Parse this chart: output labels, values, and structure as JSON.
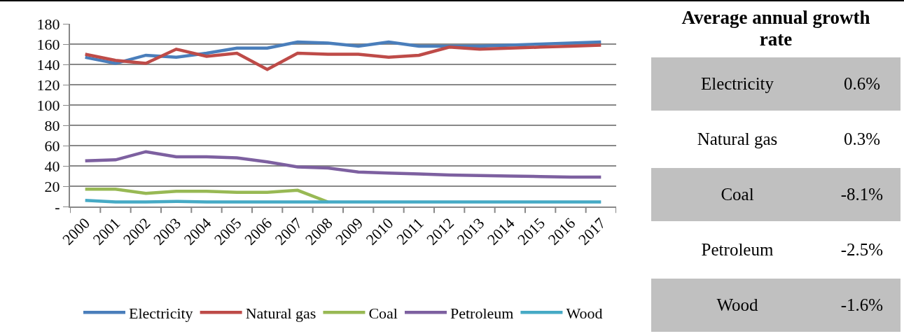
{
  "chart_data": [
    {
      "type": "line",
      "categories": [
        "2000",
        "2001",
        "2002",
        "2003",
        "2004",
        "2005",
        "2006",
        "2007",
        "2008",
        "2009",
        "2010",
        "2011",
        "2012",
        "2013",
        "2014",
        "2015",
        "2016",
        "2017"
      ],
      "series": [
        {
          "name": "Electricity",
          "color": "#4a7ebb",
          "values": [
            147,
            141,
            149,
            147,
            151,
            156,
            156,
            162,
            161,
            158,
            162,
            158,
            158,
            158,
            159,
            160,
            161,
            162
          ]
        },
        {
          "name": "Natural gas",
          "color": "#be4b48",
          "values": [
            150,
            144,
            141,
            155,
            148,
            151,
            135,
            151,
            150,
            150,
            147,
            149,
            157,
            155,
            156,
            157,
            158,
            159
          ]
        },
        {
          "name": "Coal",
          "color": "#98b954",
          "values": [
            17,
            17,
            13,
            15,
            15,
            14,
            14,
            16,
            4.5,
            null,
            null,
            null,
            null,
            null,
            null,
            null,
            null,
            null
          ]
        },
        {
          "name": "Petroleum",
          "color": "#7d60a0",
          "values": [
            45,
            46,
            54,
            49,
            49,
            48,
            44,
            39,
            38,
            34,
            33,
            32,
            31,
            30.5,
            30,
            29.5,
            29,
            29
          ]
        },
        {
          "name": "Wood",
          "color": "#46aac5",
          "values": [
            6,
            4.5,
            4.5,
            5,
            4.5,
            4.5,
            4.5,
            4.5,
            4.5,
            4.5,
            4.5,
            4.5,
            4.5,
            4.5,
            4.5,
            4.5,
            4.5,
            4.5
          ]
        }
      ],
      "ylim": [
        0,
        180
      ],
      "yticks": [
        {
          "value": 0,
          "label": "-"
        },
        20,
        40,
        60,
        80,
        100,
        120,
        140,
        160,
        180
      ],
      "grid": "y",
      "legend": "bottom",
      "marker": "none",
      "line_style": "solid"
    },
    {
      "type": "other",
      "title": "Average annual growth rate",
      "categories": [
        "Electricity",
        "Natural gas",
        "Coal",
        "Petroleum",
        "Wood"
      ],
      "annotations": [
        "0.6%",
        "0.3%",
        "-8.1%",
        "-2.5%",
        "-1.6%"
      ],
      "colors": [
        "#c0c0c0",
        "#ffffff",
        "#c0c0c0",
        "#ffffff",
        "#c0c0c0"
      ]
    }
  ]
}
